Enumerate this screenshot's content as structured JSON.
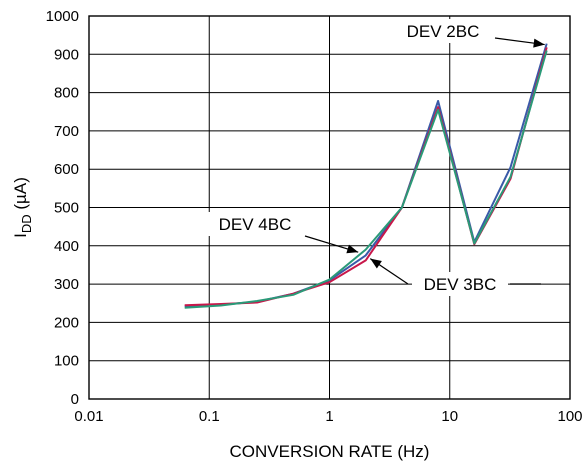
{
  "chart_data": {
    "type": "line",
    "xlabel": "CONVERSION RATE (Hz)",
    "ylabel": {
      "main": "I",
      "sub": "DD",
      "unit": " (µA)"
    },
    "x_scale": "log",
    "xlim": [
      0.01,
      100
    ],
    "ylim": [
      0,
      1000
    ],
    "grid": true,
    "x_ticks": [
      "0.01",
      "0.1",
      "1",
      "10",
      "100"
    ],
    "y_ticks": [
      "0",
      "100",
      "200",
      "300",
      "400",
      "500",
      "600",
      "700",
      "800",
      "900",
      "1000"
    ],
    "x": [
      0.0625,
      0.125,
      0.25,
      0.5,
      1,
      2,
      4,
      8,
      16,
      32,
      64
    ],
    "series": [
      {
        "name": "DEV 2BC",
        "color": "#3a5aa8",
        "values": [
          242,
          246,
          254,
          275,
          310,
          375,
          500,
          778,
          410,
          605,
          928
        ]
      },
      {
        "name": "DEV 3BC",
        "color": "#c8174a",
        "values": [
          245,
          248,
          252,
          275,
          305,
          362,
          500,
          762,
          404,
          575,
          918
        ]
      },
      {
        "name": "DEV 4BC",
        "color": "#2a9a78",
        "values": [
          238,
          244,
          256,
          272,
          312,
          390,
          500,
          755,
          406,
          580,
          910
        ]
      }
    ],
    "annotations": [
      {
        "text": "DEV 2BC",
        "series": "DEV 2BC",
        "point_x": 64
      },
      {
        "text": "DEV 4BC",
        "series": "DEV 4BC",
        "point_x": 1.8
      },
      {
        "text": "DEV 3BC",
        "series": "DEV 3BC",
        "point_x": 2.1
      }
    ]
  }
}
